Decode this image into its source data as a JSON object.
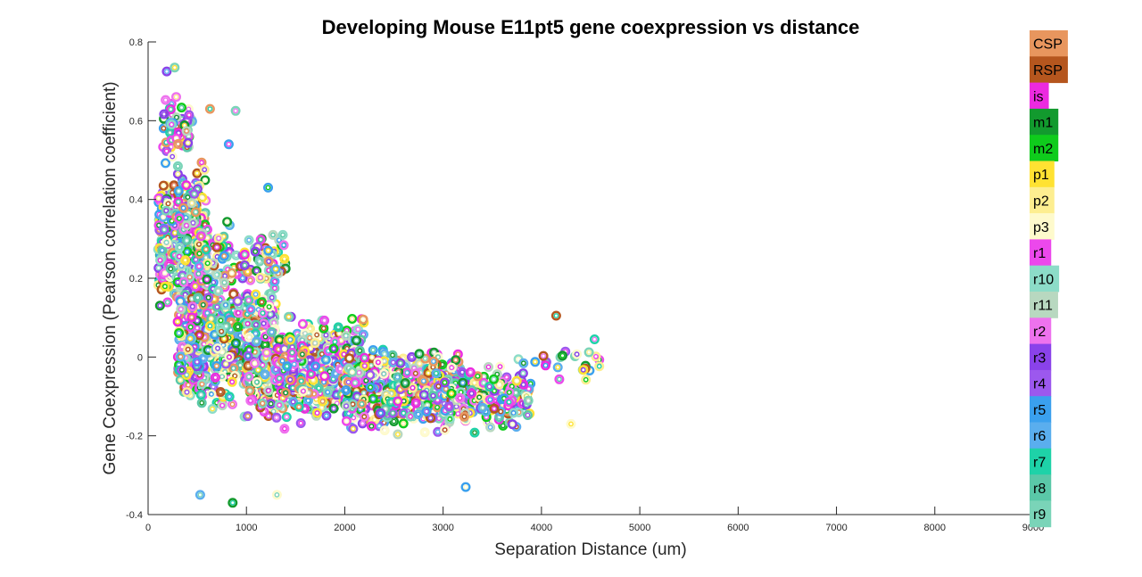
{
  "chart_data": {
    "type": "scatter",
    "title": "Developing Mouse E11pt5 gene coexpression vs distance",
    "xlabel": "Separation Distance (um)",
    "ylabel": "Gene Coexpression (Pearson correlation coefficient)",
    "xlim": [
      0,
      9000
    ],
    "ylim": [
      -0.4,
      0.8
    ],
    "xticks": [
      0,
      1000,
      2000,
      3000,
      4000,
      5000,
      6000,
      7000,
      8000,
      9000
    ],
    "xtick_labels": [
      "0",
      "1000",
      "2000",
      "3000",
      "4000",
      "5000",
      "6000",
      "7000",
      "8000",
      "9000"
    ],
    "yticks": [
      -0.4,
      -0.2,
      0,
      0.2,
      0.4,
      0.6,
      0.8
    ],
    "ytick_labels": [
      "-0.4",
      "-0.2",
      "0",
      "0.2",
      "0.4",
      "0.6",
      "0.8"
    ],
    "grid": false,
    "marker": "open circle (outer region color, inner ring region color)",
    "legend_position": "right",
    "legend": [
      {
        "label": "CSP",
        "color": "#e8965e"
      },
      {
        "label": "RSP",
        "color": "#b5561e"
      },
      {
        "label": "is",
        "color": "#ec2ae0"
      },
      {
        "label": "m1",
        "color": "#129a2e"
      },
      {
        "label": "m2",
        "color": "#0fcb1c"
      },
      {
        "label": "p1",
        "color": "#ffe232"
      },
      {
        "label": "p2",
        "color": "#fdee90"
      },
      {
        "label": "p3",
        "color": "#fefacc"
      },
      {
        "label": "r1",
        "color": "#ec48ec"
      },
      {
        "label": "r10",
        "color": "#8cdcc8"
      },
      {
        "label": "r11",
        "color": "#b8d8c0"
      },
      {
        "label": "r2",
        "color": "#ee72ee"
      },
      {
        "label": "r3",
        "color": "#8a42ea"
      },
      {
        "label": "r4",
        "color": "#9c58ee"
      },
      {
        "label": "r5",
        "color": "#3aa0ee"
      },
      {
        "label": "r6",
        "color": "#5aaeee"
      },
      {
        "label": "r7",
        "color": "#1ed2a8"
      },
      {
        "label": "r8",
        "color": "#5ac8a8"
      },
      {
        "label": "r9",
        "color": "#7ad4b8"
      }
    ],
    "point_clusters": [
      {
        "x_range": [
          100,
          600
        ],
        "y_mean": 0.3,
        "y_spread": 0.22,
        "count": 420
      },
      {
        "x_range": [
          150,
          450
        ],
        "y_mean": 0.58,
        "y_spread": 0.1,
        "count": 70
      },
      {
        "x_range": [
          300,
          1300
        ],
        "y_mean": 0.05,
        "y_spread": 0.22,
        "count": 650
      },
      {
        "x_range": [
          500,
          1400
        ],
        "y_mean": 0.25,
        "y_spread": 0.12,
        "count": 90
      },
      {
        "x_range": [
          1000,
          2200
        ],
        "y_mean": -0.03,
        "y_spread": 0.16,
        "count": 700
      },
      {
        "x_range": [
          2000,
          3200
        ],
        "y_mean": -0.08,
        "y_spread": 0.13,
        "count": 560
      },
      {
        "x_range": [
          3000,
          3900
        ],
        "y_mean": -0.1,
        "y_spread": 0.1,
        "count": 230
      },
      {
        "x_range": [
          3800,
          4600
        ],
        "y_mean": -0.02,
        "y_spread": 0.07,
        "count": 25
      }
    ],
    "notable_points": [
      {
        "x": 190,
        "y": 0.725
      },
      {
        "x": 270,
        "y": 0.735
      },
      {
        "x": 630,
        "y": 0.63
      },
      {
        "x": 890,
        "y": 0.625
      },
      {
        "x": 820,
        "y": 0.54
      },
      {
        "x": 1220,
        "y": 0.43
      },
      {
        "x": 1270,
        "y": 0.31
      },
      {
        "x": 1370,
        "y": 0.31
      },
      {
        "x": 4150,
        "y": 0.105
      },
      {
        "x": 4540,
        "y": 0.045
      },
      {
        "x": 4300,
        "y": -0.17
      },
      {
        "x": 860,
        "y": -0.37
      },
      {
        "x": 530,
        "y": -0.35
      },
      {
        "x": 1310,
        "y": -0.35
      },
      {
        "x": 3230,
        "y": -0.33
      }
    ]
  }
}
